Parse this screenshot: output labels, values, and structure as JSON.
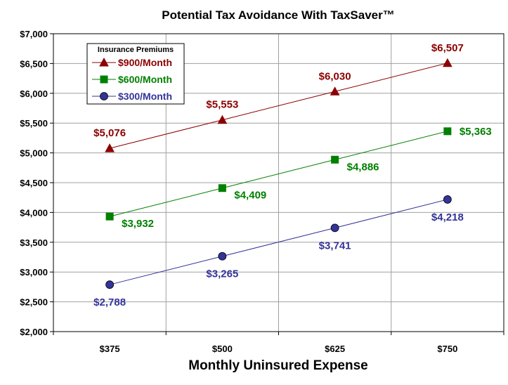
{
  "chart_data": {
    "type": "line",
    "title": "Potential Tax Avoidance With TaxSaver™",
    "xlabel": "Monthly Uninsured Expense",
    "ylabel": "",
    "categories": [
      "$375",
      "$500",
      "$625",
      "$750"
    ],
    "ylim": [
      2000,
      7000
    ],
    "yticks": [
      2000,
      2500,
      3000,
      3500,
      4000,
      4500,
      5000,
      5500,
      6000,
      6500,
      7000
    ],
    "ytick_labels": [
      "$2,000",
      "$2,500",
      "$3,000",
      "$3,500",
      "$4,000",
      "$4,500",
      "$5,000",
      "$5,500",
      "$6,000",
      "$6,500",
      "$7,000"
    ],
    "grid": true,
    "legend": {
      "title": "Insurance Premiums",
      "placement": "top-left"
    },
    "series": [
      {
        "name": "$900/Month",
        "color": "#8b0000",
        "marker": "triangle",
        "values": [
          5076,
          5553,
          6030,
          6507
        ],
        "labels": [
          "$5,076",
          "$5,553",
          "$6,030",
          "$6,507"
        ]
      },
      {
        "name": "$600/Month",
        "color": "#008000",
        "marker": "square",
        "values": [
          3932,
          4409,
          4886,
          5363
        ],
        "labels": [
          "$3,932",
          "$4,409",
          "$4,886",
          "$5,363"
        ]
      },
      {
        "name": "$300/Month",
        "color": "#333399",
        "marker": "circle",
        "values": [
          2788,
          3265,
          3741,
          4218
        ],
        "labels": [
          "$2,788",
          "$3,265",
          "$3,741",
          "$4,218"
        ]
      }
    ]
  }
}
